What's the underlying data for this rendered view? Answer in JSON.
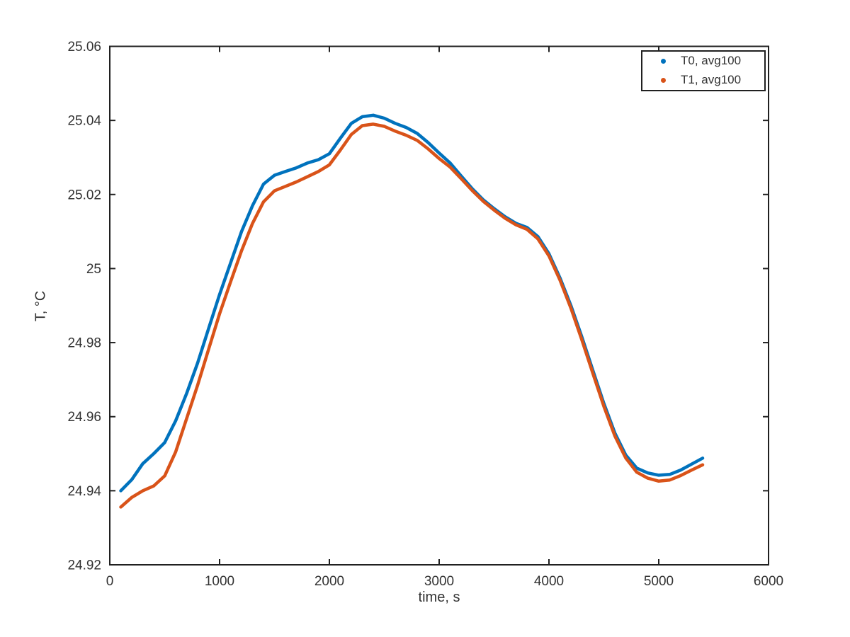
{
  "figure": {
    "background": "#ffffff"
  },
  "axes": {
    "xlabel": "time, s",
    "ylabel": "T, °C",
    "axis_color": "#202020",
    "text_color": "#333333",
    "box": true,
    "grid": false
  },
  "legend": {
    "position": "top-right",
    "items": [
      {
        "label": "T0, avg100",
        "color": "#0072BD",
        "marker": "dot"
      },
      {
        "label": "T1, avg100",
        "color": "#D95319",
        "marker": "dot"
      }
    ]
  },
  "chart_data": {
    "type": "line",
    "title": "",
    "xlabel": "time, s",
    "ylabel": "T, °C",
    "xlim": [
      0,
      6000
    ],
    "ylim": [
      24.92,
      25.06
    ],
    "grid": false,
    "legend_position": "top-right",
    "x_ticks": {
      "values": [
        0,
        1000,
        2000,
        3000,
        4000,
        5000,
        6000
      ],
      "labels": [
        "0",
        "1000",
        "2000",
        "3000",
        "4000",
        "5000",
        "6000"
      ]
    },
    "y_ticks": {
      "values": [
        24.92,
        24.94,
        24.96,
        24.98,
        25.0,
        25.02,
        25.04,
        25.06
      ],
      "labels": [
        "24.92",
        "24.94",
        "24.96",
        "24.98",
        "25",
        "25.02",
        "25.04",
        "25.06"
      ]
    },
    "x": [
      100,
      200,
      300,
      400,
      500,
      600,
      700,
      800,
      900,
      1000,
      1100,
      1200,
      1300,
      1400,
      1500,
      1600,
      1700,
      1800,
      1900,
      2000,
      2100,
      2200,
      2300,
      2400,
      2500,
      2600,
      2700,
      2800,
      2900,
      3000,
      3100,
      3200,
      3300,
      3400,
      3500,
      3600,
      3700,
      3800,
      3900,
      4000,
      4100,
      4200,
      4300,
      4400,
      4500,
      4600,
      4700,
      4800,
      4900,
      5000,
      5100,
      5200,
      5300,
      5400
    ],
    "series": [
      {
        "name": "T0, avg100",
        "color": "#0072BD",
        "values": [
          24.94,
          24.943,
          24.9473,
          24.95,
          24.953,
          24.9589,
          24.9663,
          24.9745,
          24.9838,
          24.993,
          25.0015,
          25.01,
          25.017,
          25.0228,
          25.0252,
          25.0262,
          25.0272,
          25.0285,
          25.0294,
          25.031,
          25.0352,
          25.0392,
          25.041,
          25.0414,
          25.0406,
          25.0392,
          25.0381,
          25.0365,
          25.034,
          25.0312,
          25.0285,
          25.025,
          25.0216,
          25.0186,
          25.0162,
          25.014,
          25.0122,
          25.0111,
          25.0086,
          25.004,
          24.9975,
          24.99,
          24.9815,
          24.9725,
          24.9636,
          24.9556,
          24.9496,
          24.9461,
          24.9448,
          24.9442,
          24.9444,
          24.9456,
          24.9472,
          24.9488
        ]
      },
      {
        "name": "T1, avg100",
        "color": "#D95319",
        "values": [
          24.9356,
          24.9382,
          24.94,
          24.9413,
          24.944,
          24.9505,
          24.9595,
          24.9685,
          24.9782,
          24.9878,
          24.9964,
          25.0048,
          25.0122,
          25.018,
          25.021,
          25.0222,
          25.0234,
          25.0248,
          25.0262,
          25.028,
          25.032,
          25.0362,
          25.0386,
          25.039,
          25.0384,
          25.0371,
          25.036,
          25.0346,
          25.0323,
          25.0297,
          25.0274,
          25.0243,
          25.0211,
          25.0182,
          25.0158,
          25.0136,
          25.0118,
          25.0106,
          25.008,
          25.0034,
          24.9969,
          24.9893,
          24.9807,
          24.9717,
          24.9628,
          24.9548,
          24.9488,
          24.945,
          24.9434,
          24.9426,
          24.9429,
          24.9441,
          24.9456,
          24.947
        ]
      }
    ]
  }
}
